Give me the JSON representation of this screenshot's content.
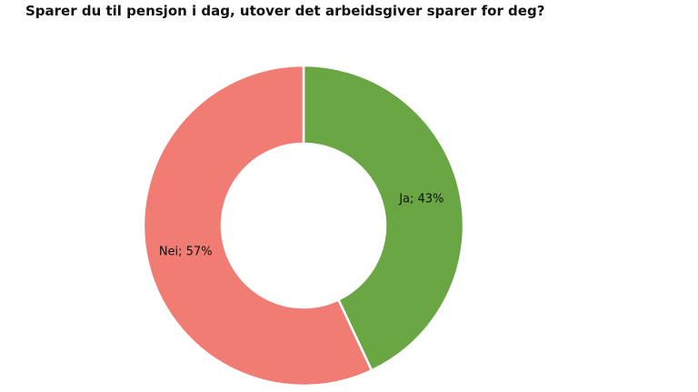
{
  "chart_data": {
    "type": "pie",
    "style": "donut",
    "title": "Sparer du til pensjon i dag, utover det arbeidsgiver sparer for deg?",
    "categories": [
      "Ja",
      "Nei"
    ],
    "values": [
      43,
      57
    ],
    "unit": "%",
    "colors": [
      "#6aa744",
      "#f07c74"
    ],
    "data_labels": [
      "Ja; 43%",
      "Nei; 57%"
    ],
    "legend": "none",
    "start_angle": "12 o'clock, clockwise"
  }
}
